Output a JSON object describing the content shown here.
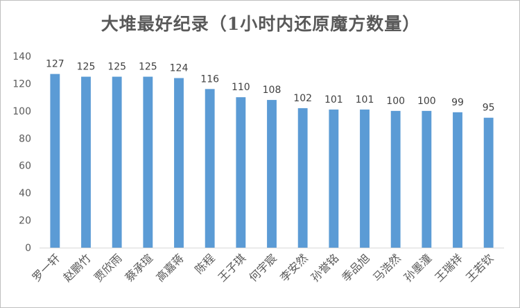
{
  "chart_data": {
    "type": "bar",
    "title": "大堆最好纪录（1小时内还原魔方数量）",
    "categories": [
      "罗一轩",
      "赵鹏竹",
      "贾欣雨",
      "蔡承瑄",
      "高嘉蒋",
      "陈程",
      "王子琪",
      "何宇宸",
      "李安然",
      "孙誉铭",
      "季品旭",
      "马浩然",
      "孙墨潼",
      "王瑞祥",
      "王若钦"
    ],
    "values": [
      127,
      125,
      125,
      125,
      124,
      116,
      110,
      108,
      102,
      101,
      101,
      100,
      100,
      99,
      95
    ],
    "ylim": [
      0,
      140
    ],
    "yticks": [
      0,
      20,
      40,
      60,
      80,
      100,
      120,
      140
    ],
    "xlabel": "",
    "ylabel": "",
    "grid": false,
    "data_labels": true,
    "bar_color": "#5b9bd5",
    "text_color": "#595959",
    "axis_color": "#d9d9d9"
  }
}
